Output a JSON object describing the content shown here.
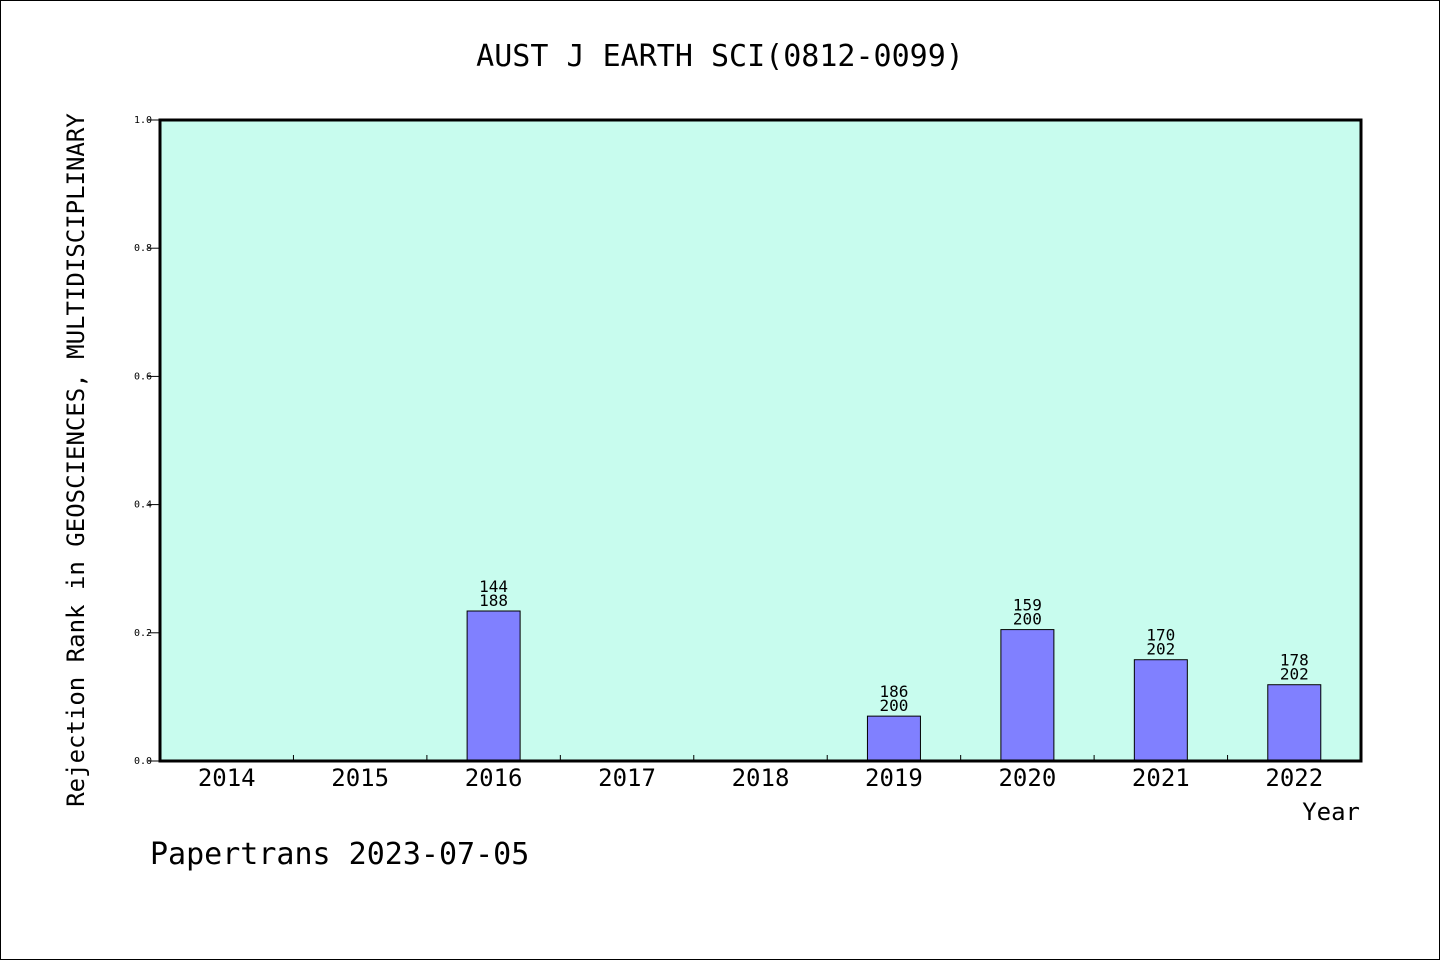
{
  "chart_data": {
    "type": "bar",
    "title": "AUST J EARTH SCI(0812-0099)",
    "xlabel": "Year",
    "ylabel": "Rejection Rank in GEOSCIENCES, MULTIDISCIPLINARY",
    "ylim": [
      0,
      1.0
    ],
    "yticks": [
      "0.0",
      "0.2",
      "0.4",
      "0.6",
      "0.8",
      "1.0"
    ],
    "categories": [
      "2014",
      "2015",
      "2016",
      "2017",
      "2018",
      "2019",
      "2020",
      "2021",
      "2022"
    ],
    "values": [
      null,
      null,
      0.234,
      null,
      null,
      0.07,
      0.205,
      0.158,
      0.119
    ],
    "bar_labels": [
      null,
      null,
      [
        "144",
        "188"
      ],
      null,
      null,
      [
        "186",
        "200"
      ],
      [
        "159",
        "200"
      ],
      [
        "170",
        "202"
      ],
      [
        "178",
        "202"
      ]
    ],
    "grid": false,
    "colors": {
      "plot_background": "#c8fcee",
      "bar_fill": "#8080ff",
      "bar_stroke": "#000000"
    }
  },
  "footer": "Papertrans 2023-07-05"
}
